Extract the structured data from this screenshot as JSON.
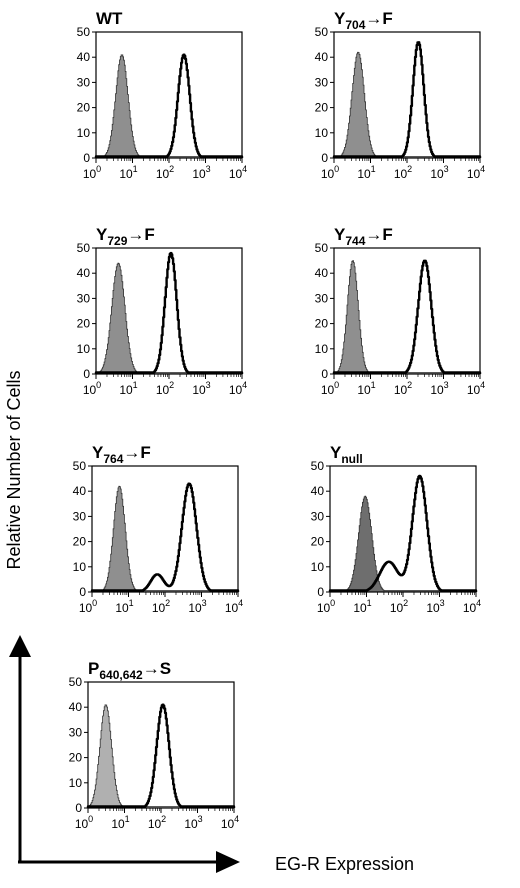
{
  "figure": {
    "y_axis_label": "Relative Number of Cells",
    "x_axis_label": "EG-R Expression"
  },
  "chart_data": [
    {
      "type": "area",
      "title_main": "WT",
      "title_sub": "",
      "title_suffix": "",
      "ylim": [
        0,
        50
      ],
      "yticks": [
        0,
        10,
        20,
        30,
        40,
        50
      ],
      "xscale": "log",
      "xlim": [
        1,
        10000
      ],
      "xtick_labels": [
        {
          "base": "10",
          "exp": "0"
        },
        {
          "base": "10",
          "exp": "1"
        },
        {
          "base": "10",
          "exp": "2"
        },
        {
          "base": "10",
          "exp": "3"
        },
        {
          "base": "10",
          "exp": "4"
        }
      ],
      "series": [
        {
          "style": "filled-gray",
          "peak_x": 5,
          "peak_y": 41,
          "width_decades": 0.17,
          "shoulder": null
        },
        {
          "style": "black-outline",
          "peak_x": 250,
          "peak_y": 41,
          "width_decades": 0.16,
          "shoulder": null
        }
      ]
    },
    {
      "type": "area",
      "title_main": "Y",
      "title_sub": "704",
      "title_suffix": "→F",
      "ylim": [
        0,
        50
      ],
      "yticks": [
        0,
        10,
        20,
        30,
        40,
        50
      ],
      "xscale": "log",
      "xlim": [
        1,
        10000
      ],
      "xtick_labels": [
        {
          "base": "10",
          "exp": "0"
        },
        {
          "base": "10",
          "exp": "1"
        },
        {
          "base": "10",
          "exp": "2"
        },
        {
          "base": "10",
          "exp": "3"
        },
        {
          "base": "10",
          "exp": "4"
        }
      ],
      "series": [
        {
          "style": "filled-gray",
          "peak_x": 4.5,
          "peak_y": 42,
          "width_decades": 0.17,
          "shoulder": null
        },
        {
          "style": "black-outline",
          "peak_x": 200,
          "peak_y": 46,
          "width_decades": 0.15,
          "shoulder": null
        }
      ]
    },
    {
      "type": "area",
      "title_main": "Y",
      "title_sub": "729",
      "title_suffix": "→F",
      "ylim": [
        0,
        50
      ],
      "yticks": [
        0,
        10,
        20,
        30,
        40,
        50
      ],
      "xscale": "log",
      "xlim": [
        1,
        10000
      ],
      "xtick_labels": [
        {
          "base": "10",
          "exp": "0"
        },
        {
          "base": "10",
          "exp": "1"
        },
        {
          "base": "10",
          "exp": "2"
        },
        {
          "base": "10",
          "exp": "3"
        },
        {
          "base": "10",
          "exp": "4"
        }
      ],
      "series": [
        {
          "style": "filled-gray",
          "peak_x": 4,
          "peak_y": 44,
          "width_decades": 0.18,
          "shoulder": null
        },
        {
          "style": "black-outline",
          "peak_x": 110,
          "peak_y": 48,
          "width_decades": 0.16,
          "shoulder": null
        }
      ]
    },
    {
      "type": "area",
      "title_main": "Y",
      "title_sub": "744",
      "title_suffix": "→F",
      "ylim": [
        0,
        50
      ],
      "yticks": [
        0,
        10,
        20,
        30,
        40,
        50
      ],
      "xscale": "log",
      "xlim": [
        1,
        10000
      ],
      "xtick_labels": [
        {
          "base": "10",
          "exp": "0"
        },
        {
          "base": "10",
          "exp": "1"
        },
        {
          "base": "10",
          "exp": "2"
        },
        {
          "base": "10",
          "exp": "3"
        },
        {
          "base": "10",
          "exp": "4"
        }
      ],
      "series": [
        {
          "style": "filled-gray",
          "peak_x": 3.2,
          "peak_y": 45,
          "width_decades": 0.15,
          "shoulder": null
        },
        {
          "style": "black-outline",
          "peak_x": 300,
          "peak_y": 45,
          "width_decades": 0.18,
          "shoulder": null
        }
      ]
    },
    {
      "type": "area",
      "title_main": "Y",
      "title_sub": "764",
      "title_suffix": "→F",
      "ylim": [
        0,
        50
      ],
      "yticks": [
        0,
        10,
        20,
        30,
        40,
        50
      ],
      "xscale": "log",
      "xlim": [
        1,
        10000
      ],
      "xtick_labels": [
        {
          "base": "10",
          "exp": "0"
        },
        {
          "base": "10",
          "exp": "1"
        },
        {
          "base": "10",
          "exp": "2"
        },
        {
          "base": "10",
          "exp": "3"
        },
        {
          "base": "10",
          "exp": "4"
        }
      ],
      "series": [
        {
          "style": "filled-gray",
          "peak_x": 5.5,
          "peak_y": 42,
          "width_decades": 0.16,
          "shoulder": null
        },
        {
          "style": "black-outline",
          "peak_x": 450,
          "peak_y": 43,
          "width_decades": 0.2,
          "shoulder": {
            "x": 60,
            "y": 7,
            "width_decades": 0.18
          }
        }
      ]
    },
    {
      "type": "area",
      "title_main": "Y",
      "title_sub": "null",
      "title_suffix": "",
      "ylim": [
        0,
        50
      ],
      "yticks": [
        0,
        10,
        20,
        30,
        40,
        50
      ],
      "xscale": "log",
      "xlim": [
        1,
        10000
      ],
      "xtick_labels": [
        {
          "base": "10",
          "exp": "0"
        },
        {
          "base": "10",
          "exp": "1"
        },
        {
          "base": "10",
          "exp": "2"
        },
        {
          "base": "10",
          "exp": "3"
        },
        {
          "base": "10",
          "exp": "4"
        }
      ],
      "series": [
        {
          "style": "filled-dark",
          "peak_x": 9,
          "peak_y": 38,
          "width_decades": 0.18,
          "shoulder": null
        },
        {
          "style": "black-outline",
          "peak_x": 280,
          "peak_y": 46,
          "width_decades": 0.2,
          "shoulder": {
            "x": 40,
            "y": 12,
            "width_decades": 0.25
          }
        }
      ]
    },
    {
      "type": "area",
      "title_main": "P",
      "title_sub": "640,642",
      "title_suffix": "→S",
      "ylim": [
        0,
        50
      ],
      "yticks": [
        0,
        10,
        20,
        30,
        40,
        50
      ],
      "xscale": "log",
      "xlim": [
        1,
        10000
      ],
      "xtick_labels": [
        {
          "base": "10",
          "exp": "0"
        },
        {
          "base": "10",
          "exp": "1"
        },
        {
          "base": "10",
          "exp": "2"
        },
        {
          "base": "10",
          "exp": "3"
        },
        {
          "base": "10",
          "exp": "4"
        }
      ],
      "series": [
        {
          "style": "filled-light",
          "peak_x": 3,
          "peak_y": 41,
          "width_decades": 0.16,
          "shoulder": null
        },
        {
          "style": "black-outline",
          "peak_x": 110,
          "peak_y": 41,
          "width_decades": 0.17,
          "shoulder": null
        }
      ]
    }
  ],
  "colors": {
    "filled_gray": "#8f8f8f",
    "filled_dark": "#6e6e6e",
    "filled_light": "#b0b0b0",
    "outline": "#000000",
    "axis": "#000000"
  }
}
